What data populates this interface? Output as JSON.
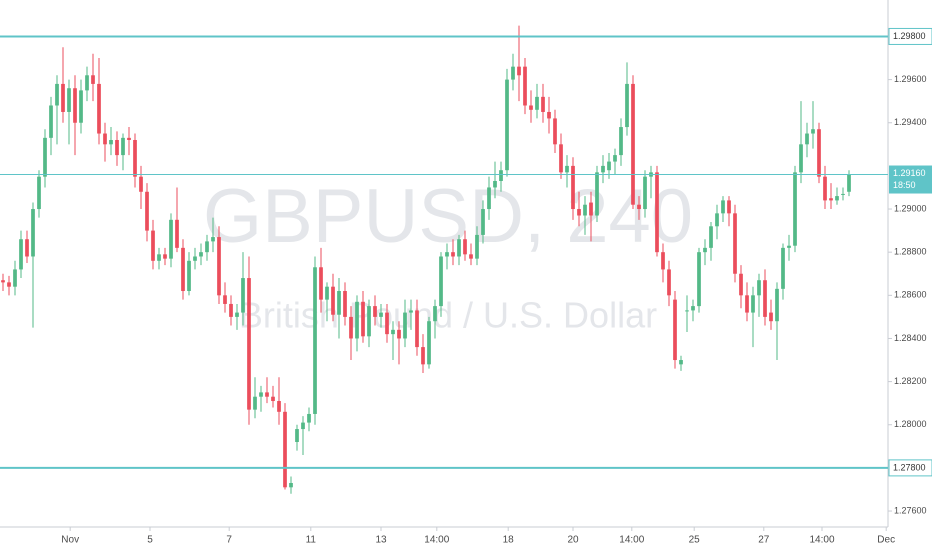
{
  "chart_data": {
    "type": "candlestick",
    "watermark": "GBPUSD, 240",
    "watermark_subtitle": "British Pound / U.S. Dollar",
    "up_color": "#53b987",
    "down_color": "#eb4d5c",
    "level_color": "#5fc4c8",
    "ohlc": [
      [
        1.2867,
        1.287,
        1.2862,
        1.2866
      ],
      [
        1.2866,
        1.2869,
        1.286,
        1.2864
      ],
      [
        1.2864,
        1.2876,
        1.286,
        1.2872
      ],
      [
        1.2872,
        1.289,
        1.2868,
        1.2886
      ],
      [
        1.2886,
        1.289,
        1.2875,
        1.2878
      ],
      [
        1.2878,
        1.2903,
        1.2845,
        1.29
      ],
      [
        1.29,
        1.2918,
        1.2896,
        1.2915
      ],
      [
        1.2915,
        1.2937,
        1.291,
        1.2933
      ],
      [
        1.2933,
        1.2952,
        1.2925,
        1.2948
      ],
      [
        1.2948,
        1.2962,
        1.293,
        1.2958
      ],
      [
        1.2958,
        1.2975,
        1.294,
        1.2945
      ],
      [
        1.2945,
        1.296,
        1.293,
        1.2956
      ],
      [
        1.2956,
        1.2962,
        1.2925,
        1.294
      ],
      [
        1.294,
        1.296,
        1.2935,
        1.2955
      ],
      [
        1.2955,
        1.2966,
        1.295,
        1.2962
      ],
      [
        1.2962,
        1.2972,
        1.295,
        1.2958
      ],
      [
        1.2958,
        1.297,
        1.293,
        1.2935
      ],
      [
        1.2935,
        1.294,
        1.2922,
        1.293
      ],
      [
        1.293,
        1.2938,
        1.2925,
        1.2932
      ],
      [
        1.2932,
        1.2936,
        1.292,
        1.2925
      ],
      [
        1.2925,
        1.2935,
        1.2918,
        1.2933
      ],
      [
        1.2933,
        1.2938,
        1.2925,
        1.2932
      ],
      [
        1.2932,
        1.2935,
        1.291,
        1.2915
      ],
      [
        1.2915,
        1.292,
        1.29,
        1.2908
      ],
      [
        1.2908,
        1.2912,
        1.2885,
        1.289
      ],
      [
        1.289,
        1.2895,
        1.2872,
        1.2876
      ],
      [
        1.2876,
        1.2882,
        1.2872,
        1.2879
      ],
      [
        1.2879,
        1.2882,
        1.2874,
        1.2877
      ],
      [
        1.2877,
        1.2898,
        1.2873,
        1.2895
      ],
      [
        1.2895,
        1.291,
        1.288,
        1.2882
      ],
      [
        1.2882,
        1.2886,
        1.2858,
        1.2862
      ],
      [
        1.2862,
        1.288,
        1.286,
        1.2876
      ],
      [
        1.2876,
        1.2882,
        1.2872,
        1.2878
      ],
      [
        1.2878,
        1.2884,
        1.2874,
        1.288
      ],
      [
        1.288,
        1.2888,
        1.2876,
        1.2885
      ],
      [
        1.2885,
        1.2896,
        1.288,
        1.2887
      ],
      [
        1.2887,
        1.2892,
        1.2856,
        1.286
      ],
      [
        1.286,
        1.2866,
        1.2852,
        1.2856
      ],
      [
        1.2856,
        1.286,
        1.2846,
        1.285
      ],
      [
        1.285,
        1.2856,
        1.2844,
        1.2852
      ],
      [
        1.2852,
        1.288,
        1.2846,
        1.2868
      ],
      [
        1.2868,
        1.2878,
        1.28,
        1.2807
      ],
      [
        1.2807,
        1.2822,
        1.2803,
        1.2813
      ],
      [
        1.2813,
        1.2818,
        1.2806,
        1.2815
      ],
      [
        1.2815,
        1.2822,
        1.281,
        1.2813
      ],
      [
        1.2813,
        1.2818,
        1.2808,
        1.2811
      ],
      [
        1.2811,
        1.2822,
        1.28,
        1.2806
      ],
      [
        1.2806,
        1.281,
        1.277,
        1.2771
      ],
      [
        1.2771,
        1.2776,
        1.2768,
        1.2773
      ],
      [
        1.2792,
        1.28,
        1.2788,
        1.2798
      ],
      [
        1.2798,
        1.2804,
        1.2786,
        1.2801
      ],
      [
        1.2801,
        1.2808,
        1.2797,
        1.2805
      ],
      [
        1.2805,
        1.2878,
        1.28,
        1.2873
      ],
      [
        1.2873,
        1.2882,
        1.2852,
        1.2858
      ],
      [
        1.2858,
        1.2866,
        1.2848,
        1.2864
      ],
      [
        1.2864,
        1.287,
        1.2848,
        1.2851
      ],
      [
        1.2851,
        1.2868,
        1.284,
        1.2862
      ],
      [
        1.2862,
        1.2866,
        1.2846,
        1.285
      ],
      [
        1.285,
        1.2855,
        1.283,
        1.284
      ],
      [
        1.284,
        1.286,
        1.2834,
        1.2857
      ],
      [
        1.2857,
        1.2862,
        1.2838,
        1.2841
      ],
      [
        1.2841,
        1.2858,
        1.2836,
        1.2855
      ],
      [
        1.2855,
        1.286,
        1.2846,
        1.285
      ],
      [
        1.285,
        1.2856,
        1.2845,
        1.2852
      ],
      [
        1.2852,
        1.2856,
        1.2838,
        1.2842
      ],
      [
        1.2842,
        1.2848,
        1.283,
        1.2844
      ],
      [
        1.2844,
        1.2848,
        1.2828,
        1.284
      ],
      [
        1.284,
        1.2858,
        1.2836,
        1.2852
      ],
      [
        1.2852,
        1.2858,
        1.2844,
        1.2853
      ],
      [
        1.2853,
        1.2858,
        1.2832,
        1.2836
      ],
      [
        1.2836,
        1.2842,
        1.2824,
        1.2828
      ],
      [
        1.2828,
        1.285,
        1.2826,
        1.2848
      ],
      [
        1.2848,
        1.2858,
        1.284,
        1.2855
      ],
      [
        1.2855,
        1.288,
        1.285,
        1.2878
      ],
      [
        1.2878,
        1.2884,
        1.2872,
        1.288
      ],
      [
        1.288,
        1.2886,
        1.2874,
        1.2878
      ],
      [
        1.2878,
        1.2888,
        1.2874,
        1.2886
      ],
      [
        1.2886,
        1.289,
        1.2876,
        1.2879
      ],
      [
        1.2879,
        1.2884,
        1.2874,
        1.2877
      ],
      [
        1.2877,
        1.2892,
        1.2874,
        1.2888
      ],
      [
        1.2888,
        1.2904,
        1.2884,
        1.29
      ],
      [
        1.29,
        1.2915,
        1.2895,
        1.291
      ],
      [
        1.291,
        1.2922,
        1.2905,
        1.2913
      ],
      [
        1.2913,
        1.2922,
        1.2908,
        1.2918
      ],
      [
        1.2918,
        1.2965,
        1.2915,
        1.296
      ],
      [
        1.296,
        1.2972,
        1.2955,
        1.2966
      ],
      [
        1.2966,
        1.2985,
        1.295,
        1.2962
      ],
      [
        1.2966,
        1.297,
        1.2944,
        1.2948
      ],
      [
        1.2948,
        1.2955,
        1.294,
        1.2946
      ],
      [
        1.2946,
        1.2958,
        1.2942,
        1.2952
      ],
      [
        1.2952,
        1.2958,
        1.294,
        1.2945
      ],
      [
        1.2945,
        1.2952,
        1.2935,
        1.2942
      ],
      [
        1.2942,
        1.2946,
        1.2926,
        1.293
      ],
      [
        1.293,
        1.2935,
        1.2914,
        1.2917
      ],
      [
        1.2917,
        1.2925,
        1.291,
        1.292
      ],
      [
        1.292,
        1.2924,
        1.2895,
        1.29
      ],
      [
        1.29,
        1.2908,
        1.2892,
        1.2897
      ],
      [
        1.2897,
        1.2906,
        1.2888,
        1.2902
      ],
      [
        1.2903,
        1.2908,
        1.2885,
        1.2897
      ],
      [
        1.2897,
        1.292,
        1.2894,
        1.2917
      ],
      [
        1.2917,
        1.2925,
        1.2912,
        1.292
      ],
      [
        1.2918,
        1.2926,
        1.2914,
        1.2922
      ],
      [
        1.2922,
        1.2928,
        1.2916,
        1.2925
      ],
      [
        1.2925,
        1.2942,
        1.292,
        1.2938
      ],
      [
        1.2938,
        1.2968,
        1.2934,
        1.2958
      ],
      [
        1.2958,
        1.2962,
        1.29,
        1.2902
      ],
      [
        1.2902,
        1.2906,
        1.2895,
        1.29
      ],
      [
        1.29,
        1.2918,
        1.2896,
        1.2915
      ],
      [
        1.2915,
        1.292,
        1.2905,
        1.2917
      ],
      [
        1.2917,
        1.292,
        1.2878,
        1.288
      ],
      [
        1.288,
        1.2884,
        1.2866,
        1.2872
      ],
      [
        1.2872,
        1.2876,
        1.2855,
        1.286
      ],
      [
        1.2858,
        1.2862,
        1.2826,
        1.283
      ],
      [
        1.2828,
        1.2832,
        1.2825,
        1.283
      ],
      [
        1.2853,
        1.286,
        1.2843,
        1.2853
      ],
      [
        1.2853,
        1.2858,
        1.2848,
        1.2855
      ],
      [
        1.2855,
        1.2882,
        1.2852,
        1.288
      ],
      [
        1.288,
        1.2886,
        1.2874,
        1.2882
      ],
      [
        1.2882,
        1.2894,
        1.2876,
        1.2892
      ],
      [
        1.2892,
        1.2902,
        1.2886,
        1.2898
      ],
      [
        1.2898,
        1.2906,
        1.2894,
        1.2904
      ],
      [
        1.2904,
        1.2906,
        1.2892,
        1.2898
      ],
      [
        1.2898,
        1.2902,
        1.2866,
        1.287
      ],
      [
        1.287,
        1.2874,
        1.2854,
        1.286
      ],
      [
        1.286,
        1.2866,
        1.2848,
        1.2852
      ],
      [
        1.2852,
        1.2864,
        1.2836,
        1.286
      ],
      [
        1.286,
        1.287,
        1.285,
        1.2867
      ],
      [
        1.2867,
        1.2872,
        1.2846,
        1.285
      ],
      [
        1.2852,
        1.2858,
        1.2844,
        1.2848
      ],
      [
        1.2848,
        1.2866,
        1.283,
        1.2863
      ],
      [
        1.2863,
        1.2884,
        1.2858,
        1.2882
      ],
      [
        1.2882,
        1.2888,
        1.2876,
        1.2883
      ],
      [
        1.2883,
        1.292,
        1.288,
        1.2917
      ],
      [
        1.2917,
        1.295,
        1.2912,
        1.293
      ],
      [
        1.293,
        1.294,
        1.2924,
        1.2935
      ],
      [
        1.2935,
        1.295,
        1.2928,
        1.2937
      ],
      [
        1.2937,
        1.294,
        1.2912,
        1.2915
      ],
      [
        1.2915,
        1.292,
        1.29,
        1.2904
      ],
      [
        1.2905,
        1.2912,
        1.29,
        1.2904
      ],
      [
        1.2904,
        1.291,
        1.2902,
        1.2906
      ],
      [
        1.2907,
        1.291,
        1.2904,
        1.2907
      ],
      [
        1.2908,
        1.2918,
        1.2906,
        1.2916
      ]
    ],
    "xlim": [
      -0.5,
      147.5
    ],
    "xticks": [
      {
        "value": 11.2,
        "label": "Nov"
      },
      {
        "value": 24.5,
        "label": "5"
      },
      {
        "value": 37.7,
        "label": "7"
      },
      {
        "value": 51.3,
        "label": "11"
      },
      {
        "value": 63,
        "label": "13"
      },
      {
        "value": 72.3,
        "label": "14:00"
      },
      {
        "value": 84.2,
        "label": "18"
      },
      {
        "value": 95,
        "label": "20"
      },
      {
        "value": 104.8,
        "label": "14:00"
      },
      {
        "value": 115.2,
        "label": "25"
      },
      {
        "value": 126.8,
        "label": "27"
      },
      {
        "value": 136.5,
        "label": "14:00"
      },
      {
        "value": 147.2,
        "label": "Dec"
      }
    ],
    "ylim": [
      1.27526,
      1.29969
    ],
    "yticks": [
      {
        "value": 1.276,
        "label": "1.27600"
      },
      {
        "value": 1.28,
        "label": "1.28000"
      },
      {
        "value": 1.282,
        "label": "1.28200"
      },
      {
        "value": 1.284,
        "label": "1.28400"
      },
      {
        "value": 1.286,
        "label": "1.28600"
      },
      {
        "value": 1.288,
        "label": "1.28800"
      },
      {
        "value": 1.29,
        "label": "1.29000"
      },
      {
        "value": 1.294,
        "label": "1.29400"
      },
      {
        "value": 1.296,
        "label": "1.29600"
      }
    ],
    "levels": [
      {
        "value": 1.298,
        "label": "1.29800"
      },
      {
        "value": 1.278,
        "label": "1.27800"
      }
    ],
    "last_price": {
      "value": 1.2916,
      "label": "1.29160"
    },
    "countdown": "18:50"
  }
}
